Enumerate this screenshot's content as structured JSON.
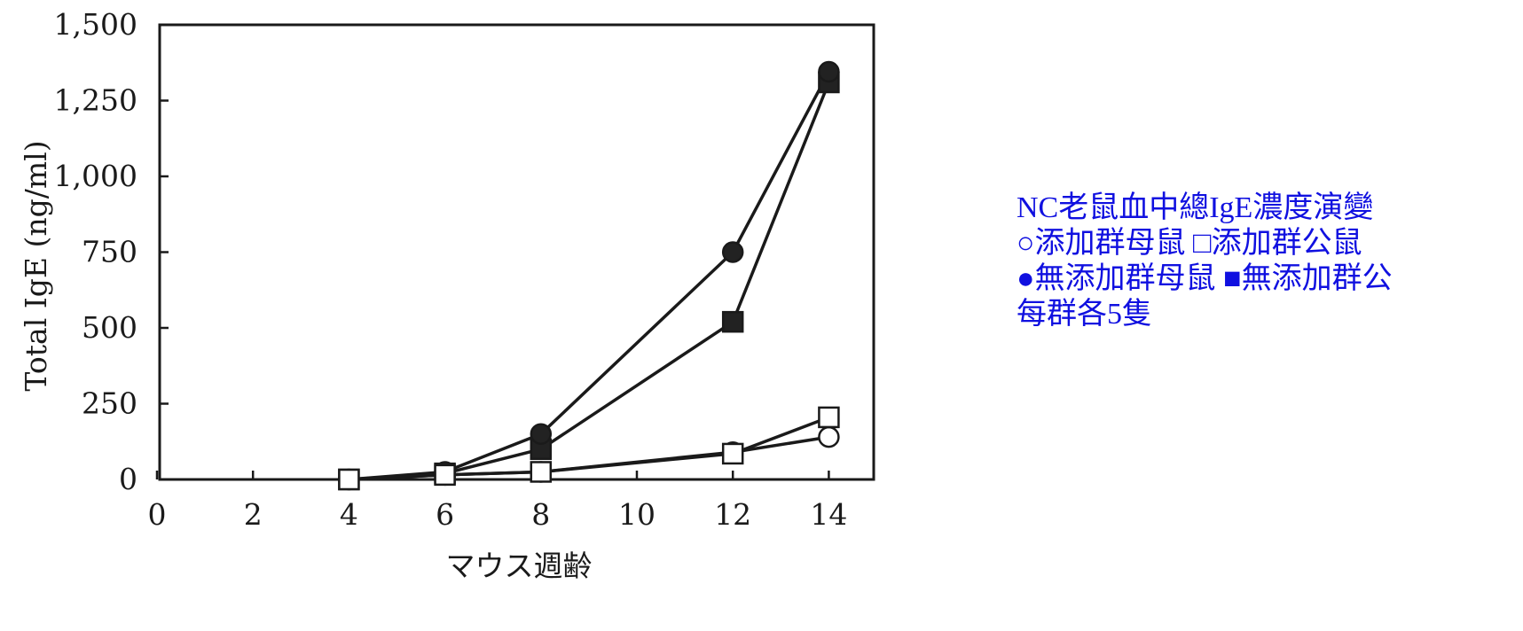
{
  "caption": {
    "title": "NC老鼠血中總IgE濃度演變",
    "legend_line_1": "○添加群母鼠 □添加群公鼠",
    "legend_line_2": "●無添加群母鼠 ■無添加群公",
    "note": "每群各5隻"
  },
  "chart_data": {
    "type": "line",
    "xlabel": "マウス週齢",
    "ylabel": "Total IgE (ng/ml)",
    "xlim": [
      0,
      14.5
    ],
    "ylim": [
      0,
      1500
    ],
    "x_ticks": [
      0,
      2,
      4,
      6,
      8,
      10,
      12,
      14
    ],
    "x_tick_labels": [
      "0",
      "2",
      "4",
      "6",
      "8",
      "10",
      "12",
      "14"
    ],
    "y_ticks": [
      0,
      250,
      500,
      750,
      1000,
      1250,
      1500
    ],
    "y_tick_labels": [
      "0",
      "250",
      "500",
      "750",
      "1,000",
      "1,250",
      "1,500"
    ],
    "series": [
      {
        "key": "addition-female",
        "marker": "circle-open",
        "x": [
          4,
          6,
          8,
          12,
          14
        ],
        "y": [
          0,
          15,
          25,
          90,
          140
        ]
      },
      {
        "key": "addition-male",
        "marker": "square-open",
        "x": [
          4,
          6,
          8,
          12,
          14
        ],
        "y": [
          0,
          15,
          25,
          85,
          205
        ]
      },
      {
        "key": "no-addition-female",
        "marker": "circle-filled",
        "x": [
          4,
          6,
          8,
          12,
          14
        ],
        "y": [
          0,
          25,
          150,
          750,
          1345
        ]
      },
      {
        "key": "no-addition-male",
        "marker": "square-filled",
        "x": [
          4,
          6,
          8,
          12,
          14
        ],
        "y": [
          0,
          20,
          100,
          520,
          1310
        ]
      }
    ],
    "grid": false,
    "line_color": "#1a1a1a",
    "caption_color": "#1010e0"
  }
}
